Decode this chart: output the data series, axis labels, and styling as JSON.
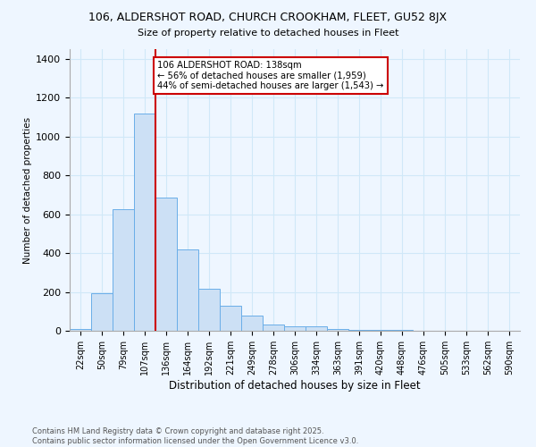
{
  "title1": "106, ALDERSHOT ROAD, CHURCH CROOKHAM, FLEET, GU52 8JX",
  "title2": "Size of property relative to detached houses in Fleet",
  "xlabel": "Distribution of detached houses by size in Fleet",
  "ylabel": "Number of detached properties",
  "categories": [
    "22sqm",
    "50sqm",
    "79sqm",
    "107sqm",
    "136sqm",
    "164sqm",
    "192sqm",
    "221sqm",
    "249sqm",
    "278sqm",
    "306sqm",
    "334sqm",
    "363sqm",
    "391sqm",
    "420sqm",
    "448sqm",
    "476sqm",
    "505sqm",
    "533sqm",
    "562sqm",
    "590sqm"
  ],
  "values": [
    10,
    195,
    625,
    1120,
    685,
    420,
    215,
    130,
    80,
    30,
    25,
    25,
    10,
    5,
    5,
    3,
    2,
    1,
    0,
    0,
    0
  ],
  "bar_color": "#cce0f5",
  "bar_edge_color": "#6aaee8",
  "grid_color": "#d0e8f8",
  "vline_color": "#cc0000",
  "annotation_text": "106 ALDERSHOT ROAD: 138sqm\n← 56% of detached houses are smaller (1,959)\n44% of semi-detached houses are larger (1,543) →",
  "annotation_box_color": "white",
  "annotation_box_edge": "#cc0000",
  "ylim": [
    0,
    1450
  ],
  "yticks": [
    0,
    200,
    400,
    600,
    800,
    1000,
    1200,
    1400
  ],
  "footer1": "Contains HM Land Registry data © Crown copyright and database right 2025.",
  "footer2": "Contains public sector information licensed under the Open Government Licence v3.0.",
  "bg_color": "#eef6ff"
}
